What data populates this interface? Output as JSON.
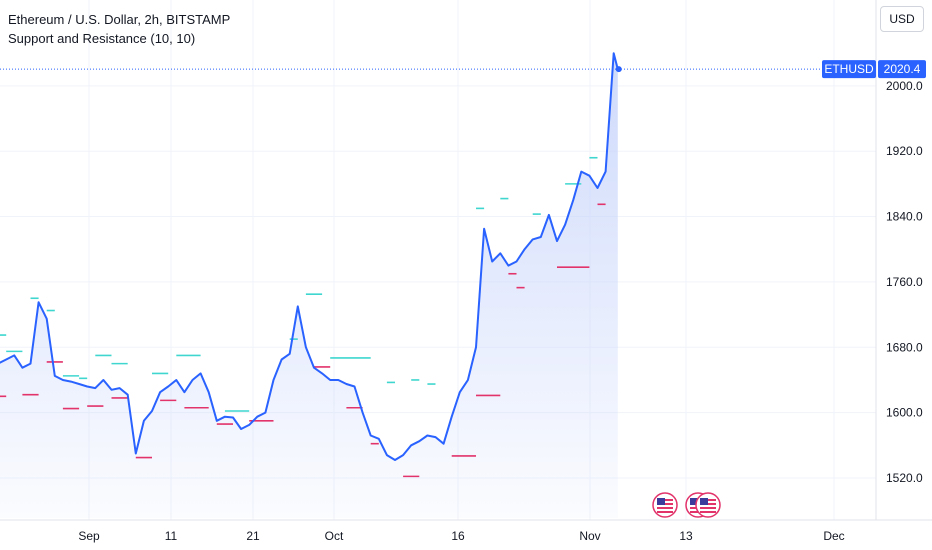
{
  "header": {
    "title": "Ethereum / U.S. Dollar, 2h, BITSTAMP",
    "indicator": "Support and Resistance (10, 10)"
  },
  "toolbar": {
    "currency_label": "USD"
  },
  "price_label": {
    "symbol": "ETHUSD",
    "value": "2020.4"
  },
  "event_icons": [
    "us-flag-event-icon",
    "us-flag-event-icon",
    "us-flag-event-icon"
  ],
  "colors": {
    "line": "#2962ff",
    "area_top": "#c9d6fb",
    "resistance": "#3fd6cf",
    "support": "#e2336b",
    "grid": "#f0f3fa",
    "axis_text": "#131722"
  },
  "chart_data": {
    "type": "line",
    "title": "Ethereum / U.S. Dollar, 2h, BITSTAMP",
    "xlabel": "",
    "ylabel": "",
    "x_ticks": [
      "Sep",
      "11",
      "21",
      "Oct",
      "16",
      "Nov",
      "13",
      "Dec"
    ],
    "y_ticks": [
      "1520.0",
      "1600.0",
      "1680.0",
      "1760.0",
      "1840.0",
      "1920.0",
      "2000.0"
    ],
    "ylim": [
      1500,
      2060
    ],
    "grid": true,
    "last_price": 2020.4,
    "series": [
      {
        "type": "line",
        "points": [
          [
            "2023-08-24",
            1680
          ],
          [
            "2023-08-25",
            1660
          ],
          [
            "2023-08-26",
            1665
          ],
          [
            "2023-08-27",
            1670
          ],
          [
            "2023-08-28",
            1655
          ],
          [
            "2023-08-29",
            1660
          ],
          [
            "2023-08-30",
            1735
          ],
          [
            "2023-08-31",
            1715
          ],
          [
            "2023-09-01",
            1645
          ],
          [
            "2023-09-02",
            1640
          ],
          [
            "2023-09-03",
            1638
          ],
          [
            "2023-09-04",
            1635
          ],
          [
            "2023-09-05",
            1632
          ],
          [
            "2023-09-06",
            1630
          ],
          [
            "2023-09-07",
            1640
          ],
          [
            "2023-09-08",
            1628
          ],
          [
            "2023-09-09",
            1630
          ],
          [
            "2023-09-10",
            1622
          ],
          [
            "2023-09-11",
            1550
          ],
          [
            "2023-09-12",
            1590
          ],
          [
            "2023-09-13",
            1602
          ],
          [
            "2023-09-14",
            1625
          ],
          [
            "2023-09-15",
            1632
          ],
          [
            "2023-09-16",
            1640
          ],
          [
            "2023-09-17",
            1625
          ],
          [
            "2023-09-18",
            1640
          ],
          [
            "2023-09-19",
            1648
          ],
          [
            "2023-09-20",
            1625
          ],
          [
            "2023-09-21",
            1590
          ],
          [
            "2023-09-22",
            1595
          ],
          [
            "2023-09-23",
            1594
          ],
          [
            "2023-09-24",
            1580
          ],
          [
            "2023-09-25",
            1585
          ],
          [
            "2023-09-26",
            1595
          ],
          [
            "2023-09-27",
            1600
          ],
          [
            "2023-09-28",
            1640
          ],
          [
            "2023-09-29",
            1665
          ],
          [
            "2023-09-30",
            1672
          ],
          [
            "2023-10-01",
            1730
          ],
          [
            "2023-10-02",
            1680
          ],
          [
            "2023-10-03",
            1655
          ],
          [
            "2023-10-04",
            1648
          ],
          [
            "2023-10-05",
            1640
          ],
          [
            "2023-10-06",
            1640
          ],
          [
            "2023-10-07",
            1635
          ],
          [
            "2023-10-08",
            1632
          ],
          [
            "2023-10-09",
            1600
          ],
          [
            "2023-10-10",
            1572
          ],
          [
            "2023-10-11",
            1568
          ],
          [
            "2023-10-12",
            1548
          ],
          [
            "2023-10-13",
            1542
          ],
          [
            "2023-10-14",
            1548
          ],
          [
            "2023-10-15",
            1560
          ],
          [
            "2023-10-16",
            1565
          ],
          [
            "2023-10-17",
            1572
          ],
          [
            "2023-10-18",
            1570
          ],
          [
            "2023-10-19",
            1562
          ],
          [
            "2023-10-20",
            1595
          ],
          [
            "2023-10-21",
            1625
          ],
          [
            "2023-10-22",
            1640
          ],
          [
            "2023-10-23",
            1680
          ],
          [
            "2023-10-24",
            1825
          ],
          [
            "2023-10-25",
            1785
          ],
          [
            "2023-10-26",
            1795
          ],
          [
            "2023-10-27",
            1780
          ],
          [
            "2023-10-28",
            1785
          ],
          [
            "2023-10-29",
            1800
          ],
          [
            "2023-10-30",
            1812
          ],
          [
            "2023-10-31",
            1815
          ],
          [
            "2023-11-01",
            1842
          ],
          [
            "2023-11-02",
            1810
          ],
          [
            "2023-11-03",
            1830
          ],
          [
            "2023-11-04",
            1860
          ],
          [
            "2023-11-05",
            1895
          ],
          [
            "2023-11-06",
            1890
          ],
          [
            "2023-11-07",
            1875
          ],
          [
            "2023-11-08",
            1895
          ],
          [
            "2023-11-09",
            2040
          ],
          [
            "2023-11-09T12",
            2020.4
          ]
        ]
      }
    ],
    "resistance_levels": [
      [
        "2023-08-24",
        "2023-08-26",
        1695
      ],
      [
        "2023-08-26",
        "2023-08-28",
        1675
      ],
      [
        "2023-08-29",
        "2023-08-30",
        1740
      ],
      [
        "2023-08-31",
        "2023-09-01",
        1725
      ],
      [
        "2023-09-02",
        "2023-09-04",
        1645
      ],
      [
        "2023-09-04",
        "2023-09-05",
        1642
      ],
      [
        "2023-09-06",
        "2023-09-08",
        1670
      ],
      [
        "2023-09-08",
        "2023-09-10",
        1660
      ],
      [
        "2023-09-13",
        "2023-09-15",
        1648
      ],
      [
        "2023-09-16",
        "2023-09-19",
        1670
      ],
      [
        "2023-09-22",
        "2023-09-25",
        1602
      ],
      [
        "2023-09-30",
        "2023-10-01",
        1690
      ],
      [
        "2023-10-02",
        "2023-10-04",
        1745
      ],
      [
        "2023-10-05",
        "2023-10-10",
        1667
      ],
      [
        "2023-10-12",
        "2023-10-13",
        1637
      ],
      [
        "2023-10-15",
        "2023-10-16",
        1640
      ],
      [
        "2023-10-17",
        "2023-10-18",
        1635
      ],
      [
        "2023-10-23",
        "2023-10-24",
        1850
      ],
      [
        "2023-10-26",
        "2023-10-27",
        1862
      ],
      [
        "2023-10-30",
        "2023-10-31",
        1843
      ],
      [
        "2023-11-03",
        "2023-11-05",
        1880
      ],
      [
        "2023-11-06",
        "2023-11-07",
        1912
      ]
    ],
    "support_levels": [
      [
        "2023-08-24",
        "2023-08-25",
        1553
      ],
      [
        "2023-08-24",
        "2023-08-26",
        1620
      ],
      [
        "2023-08-28",
        "2023-08-30",
        1622
      ],
      [
        "2023-08-31",
        "2023-09-02",
        1662
      ],
      [
        "2023-09-02",
        "2023-09-04",
        1605
      ],
      [
        "2023-09-05",
        "2023-09-07",
        1608
      ],
      [
        "2023-09-08",
        "2023-09-10",
        1618
      ],
      [
        "2023-09-11",
        "2023-09-13",
        1545
      ],
      [
        "2023-09-14",
        "2023-09-16",
        1615
      ],
      [
        "2023-09-17",
        "2023-09-20",
        1606
      ],
      [
        "2023-09-21",
        "2023-09-23",
        1586
      ],
      [
        "2023-09-25",
        "2023-09-28",
        1590
      ],
      [
        "2023-10-03",
        "2023-10-05",
        1656
      ],
      [
        "2023-10-07",
        "2023-10-09",
        1606
      ],
      [
        "2023-10-10",
        "2023-10-11",
        1562
      ],
      [
        "2023-10-14",
        "2023-10-16",
        1522
      ],
      [
        "2023-10-20",
        "2023-10-23",
        1547
      ],
      [
        "2023-10-23",
        "2023-10-26",
        1621
      ],
      [
        "2023-10-27",
        "2023-10-28",
        1770
      ],
      [
        "2023-10-28",
        "2023-10-29",
        1753
      ],
      [
        "2023-11-02",
        "2023-11-06",
        1778
      ],
      [
        "2023-11-07",
        "2023-11-08",
        1855
      ]
    ]
  }
}
